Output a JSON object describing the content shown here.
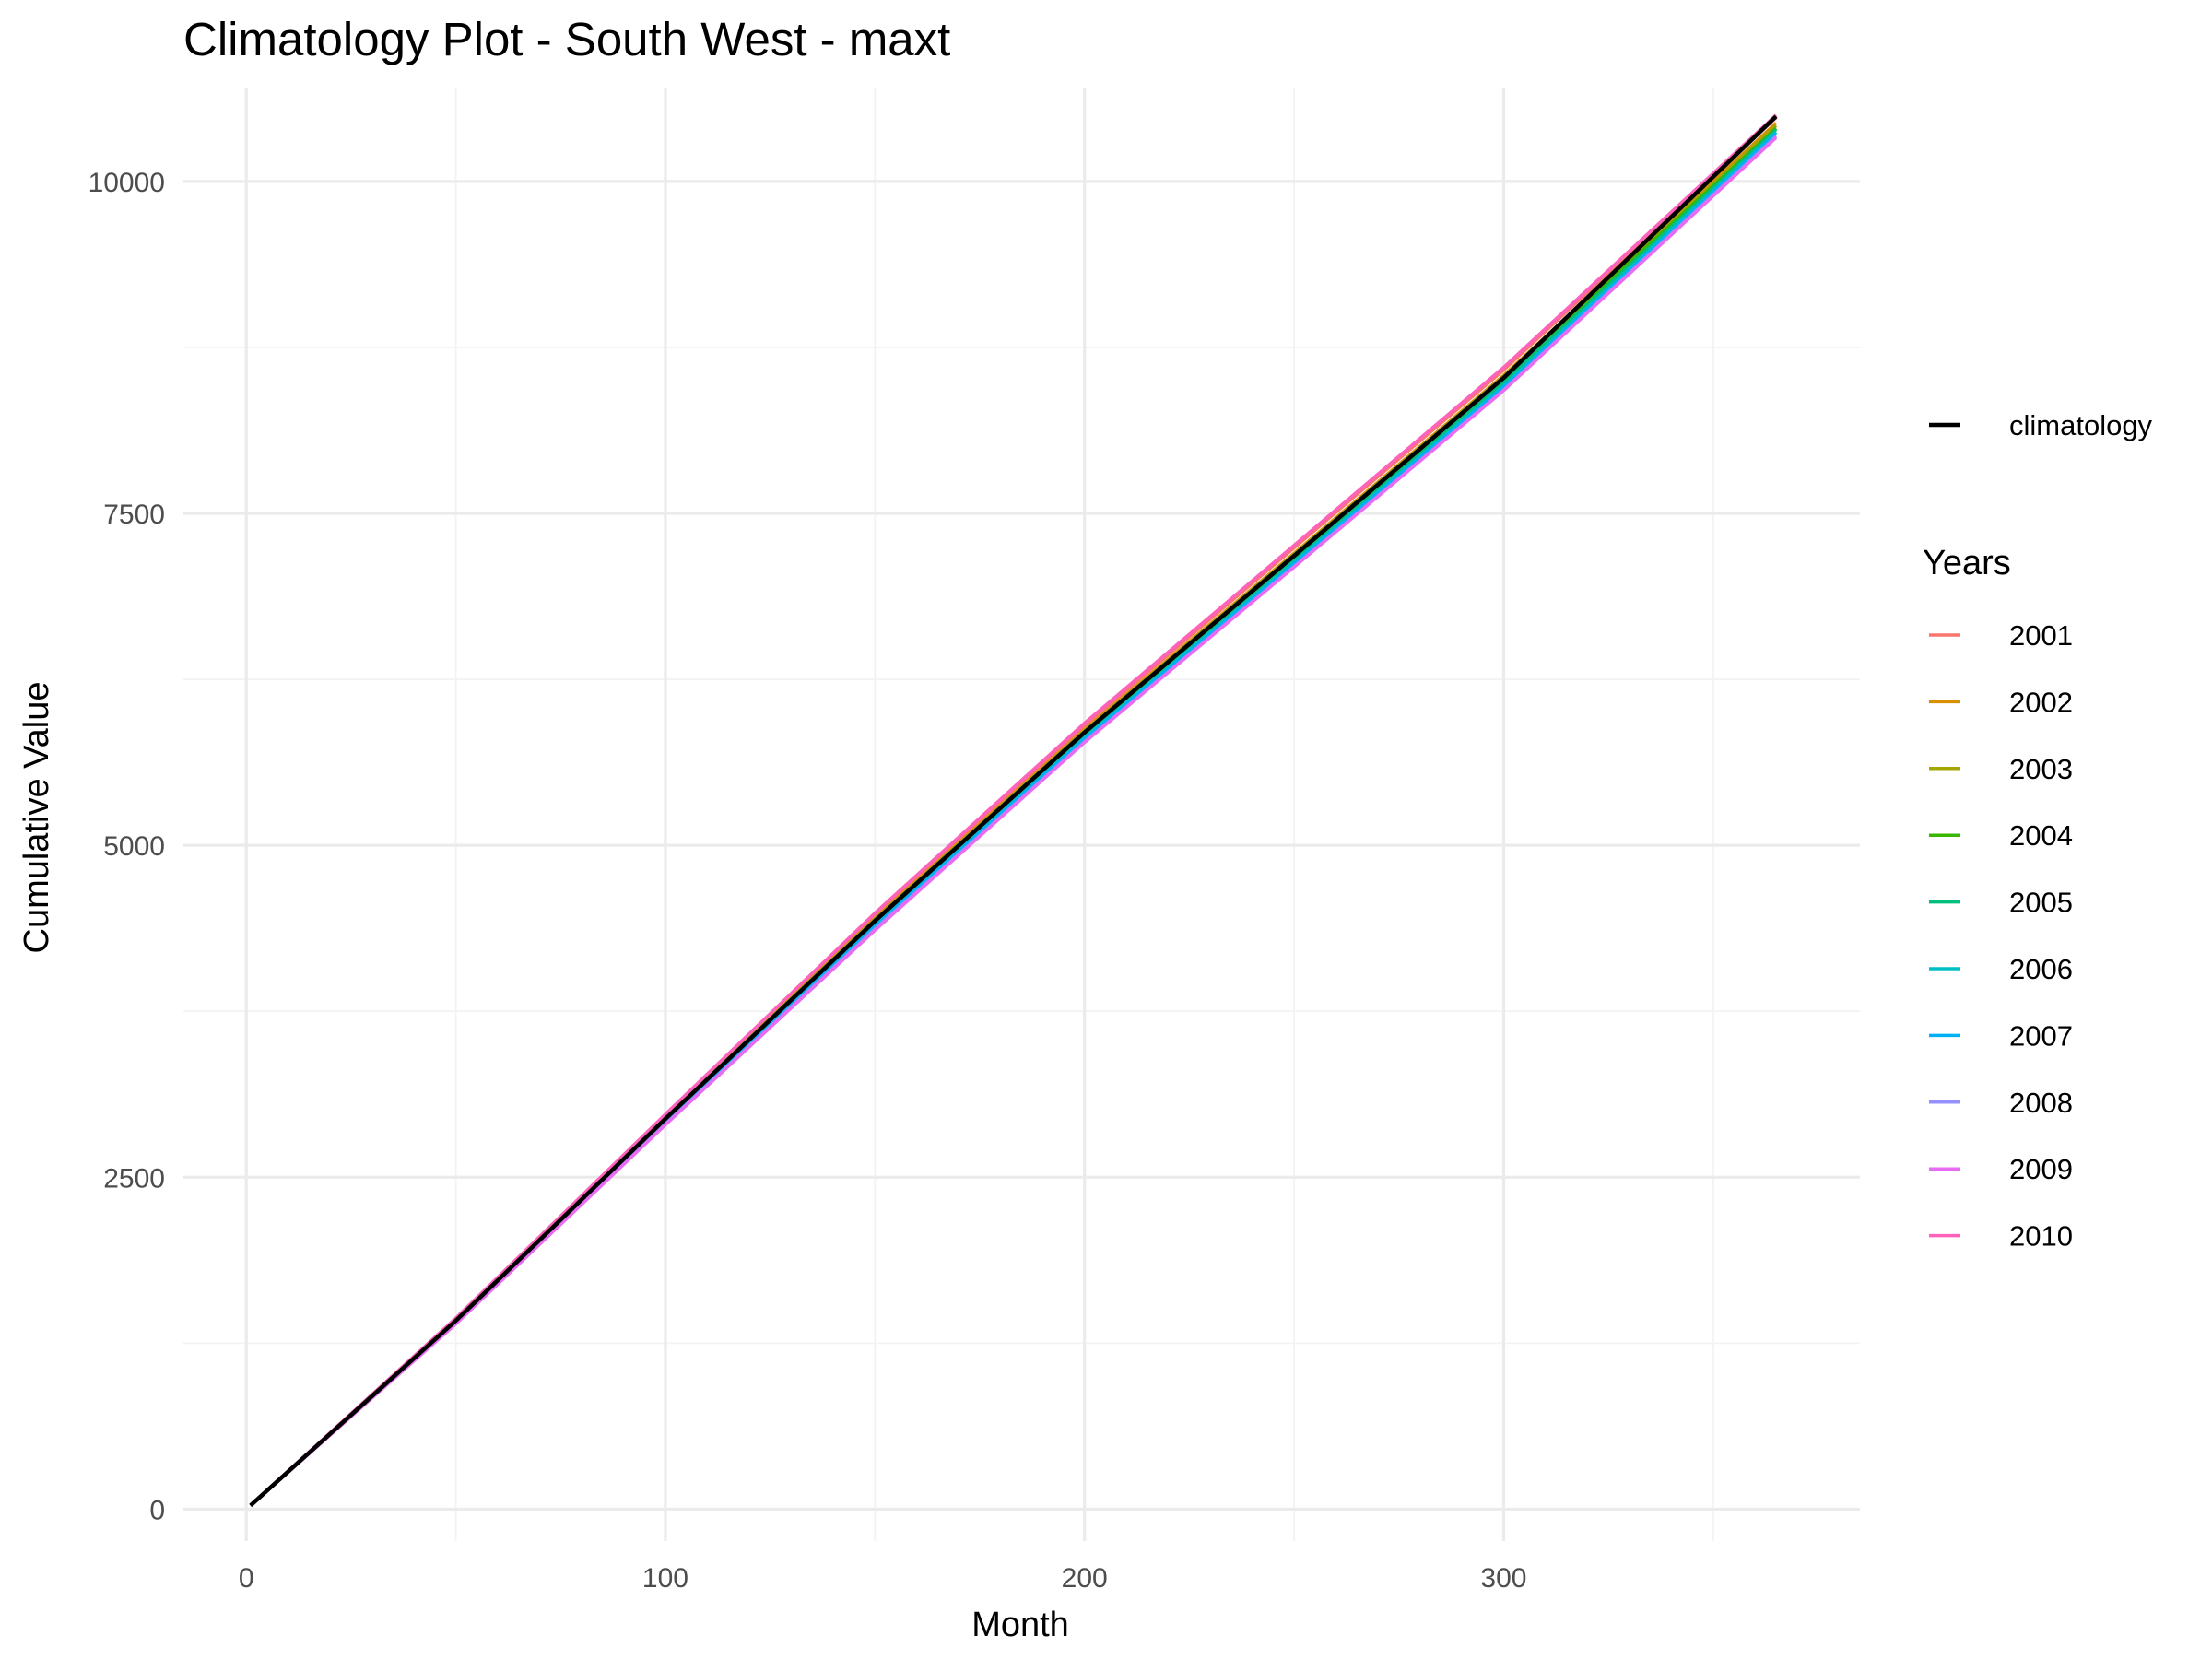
{
  "chart_data": {
    "type": "line",
    "title": "Climatology Plot - South West - maxt",
    "xlabel": "Month",
    "ylabel": "Cumulative Value",
    "xlim": [
      -15,
      385
    ],
    "ylim": [
      -240,
      10700
    ],
    "x_ticks": [
      0,
      100,
      200,
      300
    ],
    "x_tick_labels": [
      "0",
      "100",
      "200",
      "300"
    ],
    "x_minor_ticks": [
      50,
      150,
      250,
      350
    ],
    "y_ticks": [
      0,
      2500,
      5000,
      7500,
      10000
    ],
    "y_tick_labels": [
      "0",
      "2500",
      "5000",
      "7500",
      "10000"
    ],
    "y_minor_ticks": [
      1250,
      3750,
      6250,
      8750
    ],
    "grid": true,
    "legend_position": "right",
    "reference_legend": {
      "label": "climatology",
      "color": "#000000"
    },
    "legend_title": "Years",
    "reference_series": {
      "name": "climatology",
      "color": "#000000",
      "x": [
        1,
        50,
        100,
        150,
        200,
        250,
        300,
        365
      ],
      "y": [
        28,
        1420,
        2940,
        4430,
        5850,
        7180,
        8520,
        10490
      ]
    },
    "series": [
      {
        "name": "2001",
        "color": "#F8766D",
        "x": [
          1,
          50,
          100,
          150,
          200,
          250,
          300,
          365
        ],
        "y": [
          28,
          1435,
          2965,
          4470,
          5900,
          7240,
          8580,
          10480
        ]
      },
      {
        "name": "2002",
        "color": "#D89000",
        "x": [
          1,
          50,
          100,
          150,
          200,
          250,
          300,
          365
        ],
        "y": [
          27,
          1430,
          2955,
          4450,
          5870,
          7200,
          8540,
          10440
        ]
      },
      {
        "name": "2003",
        "color": "#A3A500",
        "x": [
          1,
          50,
          100,
          150,
          200,
          250,
          300,
          365
        ],
        "y": [
          28,
          1425,
          2950,
          4440,
          5860,
          7190,
          8530,
          10420
        ]
      },
      {
        "name": "2004",
        "color": "#39B600",
        "x": [
          1,
          50,
          100,
          150,
          200,
          250,
          300,
          365
        ],
        "y": [
          29,
          1425,
          2945,
          4435,
          5855,
          7185,
          8525,
          10400
        ]
      },
      {
        "name": "2005",
        "color": "#00BF7D",
        "x": [
          1,
          50,
          100,
          150,
          200,
          250,
          300,
          365
        ],
        "y": [
          28,
          1415,
          2930,
          4410,
          5830,
          7150,
          8490,
          10390
        ]
      },
      {
        "name": "2006",
        "color": "#00BFC4",
        "x": [
          1,
          50,
          100,
          150,
          200,
          250,
          300,
          365
        ],
        "y": [
          27,
          1410,
          2920,
          4400,
          5810,
          7130,
          8460,
          10370
        ]
      },
      {
        "name": "2007",
        "color": "#00B0F6",
        "x": [
          1,
          50,
          100,
          150,
          200,
          250,
          300,
          365
        ],
        "y": [
          26,
          1405,
          2910,
          4390,
          5800,
          7120,
          8450,
          10360
        ]
      },
      {
        "name": "2008",
        "color": "#9590FF",
        "x": [
          1,
          50,
          100,
          150,
          200,
          250,
          300,
          365
        ],
        "y": [
          27,
          1400,
          2900,
          4370,
          5780,
          7100,
          8430,
          10340
        ]
      },
      {
        "name": "2009",
        "color": "#E76BF3",
        "x": [
          1,
          50,
          100,
          150,
          200,
          250,
          300,
          365
        ],
        "y": [
          28,
          1395,
          2895,
          4360,
          5775,
          7095,
          8425,
          10330
        ]
      },
      {
        "name": "2010",
        "color": "#FF62BC",
        "x": [
          1,
          50,
          100,
          150,
          200,
          250,
          300,
          365
        ],
        "y": [
          29,
          1440,
          2975,
          4490,
          5920,
          7260,
          8600,
          10500
        ]
      }
    ]
  }
}
